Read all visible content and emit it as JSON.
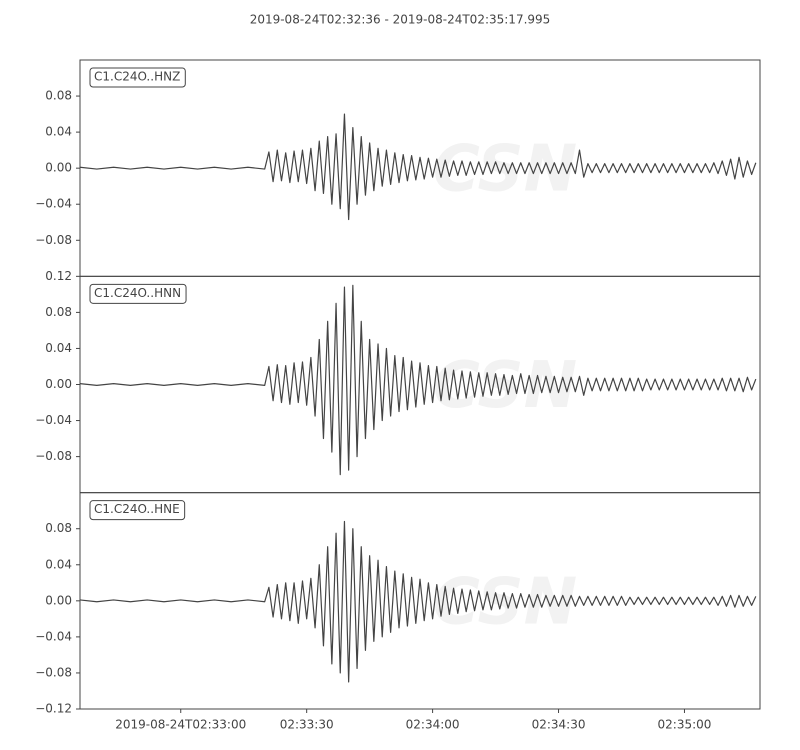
{
  "chart_data": {
    "type": "line",
    "title": "2019-08-24T02:32:36  -  2019-08-24T02:35:17.995",
    "watermark": "CSN",
    "xlim": [
      0,
      161.995
    ],
    "xticks": [
      {
        "value": 24,
        "label": "2019-08-24T02:33:00"
      },
      {
        "value": 54,
        "label": "02:33:30"
      },
      {
        "value": 84,
        "label": "02:34:00"
      },
      {
        "value": 114,
        "label": "02:34:30"
      },
      {
        "value": 144,
        "label": "02:35:00"
      }
    ],
    "x": [
      0,
      4,
      8,
      12,
      16,
      20,
      24,
      28,
      32,
      36,
      40,
      44,
      45,
      46,
      47,
      48,
      49,
      50,
      51,
      52,
      53,
      54,
      55,
      56,
      57,
      58,
      59,
      60,
      61,
      62,
      63,
      64,
      65,
      66,
      67,
      68,
      69,
      70,
      71,
      72,
      73,
      74,
      75,
      76,
      77,
      78,
      79,
      80,
      81,
      82,
      83,
      84,
      85,
      86,
      87,
      88,
      89,
      90,
      91,
      92,
      93,
      94,
      95,
      96,
      97,
      98,
      99,
      100,
      101,
      102,
      103,
      104,
      105,
      106,
      107,
      108,
      109,
      110,
      111,
      112,
      113,
      114,
      115,
      116,
      117,
      118,
      119,
      120,
      121,
      122,
      123,
      124,
      125,
      126,
      127,
      128,
      129,
      130,
      131,
      132,
      133,
      134,
      135,
      136,
      137,
      138,
      139,
      140,
      141,
      142,
      143,
      144,
      145,
      146,
      147,
      148,
      149,
      150,
      151,
      152,
      153,
      154,
      155,
      156,
      157,
      158,
      159,
      160,
      161
    ],
    "series": [
      {
        "name": "C1.C24O..HNZ",
        "color": "#444444",
        "ylim": [
          -0.12,
          0.12
        ],
        "yticks": [
          {
            "value": -0.08,
            "label": "−0.08"
          },
          {
            "value": -0.04,
            "label": "−0.04"
          },
          {
            "value": 0,
            "label": "0.00"
          },
          {
            "value": 0.04,
            "label": "0.04"
          },
          {
            "value": 0.08,
            "label": "0.08"
          }
        ],
        "values": [
          0.001,
          -0.001,
          0.001,
          -0.001,
          0.001,
          -0.001,
          0.001,
          -0.001,
          0.001,
          -0.001,
          0.001,
          -0.001,
          0.018,
          -0.015,
          0.02,
          -0.014,
          0.017,
          -0.016,
          0.019,
          -0.015,
          0.02,
          -0.017,
          0.022,
          -0.025,
          0.03,
          -0.028,
          0.035,
          -0.04,
          0.038,
          -0.045,
          0.06,
          -0.057,
          0.045,
          -0.04,
          0.035,
          -0.03,
          0.028,
          -0.025,
          0.022,
          -0.02,
          0.02,
          -0.018,
          0.017,
          -0.016,
          0.015,
          -0.014,
          0.014,
          -0.013,
          0.012,
          -0.012,
          0.011,
          -0.01,
          0.01,
          -0.01,
          0.009,
          -0.009,
          0.008,
          -0.008,
          0.008,
          -0.008,
          0.007,
          -0.007,
          0.007,
          -0.007,
          0.007,
          -0.006,
          0.007,
          -0.006,
          0.006,
          -0.006,
          0.006,
          -0.006,
          0.006,
          -0.006,
          0.006,
          -0.006,
          0.006,
          -0.006,
          0.006,
          -0.006,
          0.006,
          -0.006,
          0.006,
          -0.006,
          0.006,
          -0.006,
          0.02,
          -0.01,
          0.005,
          -0.005,
          0.005,
          -0.005,
          0.005,
          -0.005,
          0.005,
          -0.005,
          0.005,
          -0.005,
          0.005,
          -0.005,
          0.005,
          -0.005,
          0.005,
          -0.005,
          0.005,
          -0.005,
          0.005,
          -0.005,
          0.005,
          -0.005,
          0.005,
          -0.005,
          0.005,
          -0.005,
          0.005,
          -0.005,
          0.005,
          -0.005,
          0.006,
          -0.006,
          0.008,
          -0.008,
          0.01,
          -0.012,
          0.012,
          -0.01,
          0.008,
          -0.007,
          0.006
        ]
      },
      {
        "name": "C1.C24O..HNN",
        "color": "#444444",
        "ylim": [
          -0.12,
          0.12
        ],
        "yticks": [
          {
            "value": -0.08,
            "label": "−0.08"
          },
          {
            "value": -0.04,
            "label": "−0.04"
          },
          {
            "value": 0,
            "label": "0.00"
          },
          {
            "value": 0.04,
            "label": "0.04"
          },
          {
            "value": 0.08,
            "label": "0.08"
          },
          {
            "value": 0.12,
            "label": "0.12"
          }
        ],
        "values": [
          0.001,
          -0.001,
          0.001,
          -0.001,
          0.001,
          -0.001,
          0.001,
          -0.001,
          0.001,
          -0.001,
          0.001,
          -0.001,
          0.02,
          -0.018,
          0.022,
          -0.02,
          0.021,
          -0.022,
          0.024,
          -0.02,
          0.025,
          -0.023,
          0.03,
          -0.035,
          0.05,
          -0.06,
          0.07,
          -0.075,
          0.09,
          -0.1,
          0.108,
          -0.095,
          0.11,
          -0.08,
          0.07,
          -0.06,
          0.05,
          -0.05,
          0.045,
          -0.04,
          0.04,
          -0.035,
          0.032,
          -0.03,
          0.03,
          -0.028,
          0.026,
          -0.025,
          0.024,
          -0.022,
          0.021,
          -0.02,
          0.02,
          -0.018,
          0.018,
          -0.017,
          0.016,
          -0.016,
          0.015,
          -0.015,
          0.014,
          -0.014,
          0.013,
          -0.013,
          0.013,
          -0.012,
          0.012,
          -0.012,
          0.011,
          -0.011,
          0.01,
          -0.01,
          0.012,
          -0.01,
          0.01,
          -0.01,
          0.01,
          -0.009,
          0.009,
          -0.009,
          0.009,
          -0.009,
          0.008,
          -0.008,
          0.008,
          -0.008,
          0.009,
          -0.012,
          0.007,
          -0.007,
          0.007,
          -0.007,
          0.007,
          -0.007,
          0.007,
          -0.007,
          0.007,
          -0.007,
          0.007,
          -0.007,
          0.007,
          -0.007,
          0.006,
          -0.006,
          0.006,
          -0.006,
          0.006,
          -0.006,
          0.006,
          -0.006,
          0.006,
          -0.006,
          0.006,
          -0.006,
          0.006,
          -0.006,
          0.006,
          -0.006,
          0.006,
          -0.006,
          0.007,
          -0.007,
          0.007,
          -0.007,
          0.007,
          -0.008,
          0.008,
          -0.006,
          0.006
        ]
      },
      {
        "name": "C1.C24O..HNE",
        "color": "#444444",
        "ylim": [
          -0.12,
          0.12
        ],
        "yticks": [
          {
            "value": -0.12,
            "label": "−0.12"
          },
          {
            "value": -0.08,
            "label": "−0.08"
          },
          {
            "value": -0.04,
            "label": "−0.04"
          },
          {
            "value": 0,
            "label": "0.00"
          },
          {
            "value": 0.04,
            "label": "0.04"
          },
          {
            "value": 0.08,
            "label": "0.08"
          }
        ],
        "values": [
          0.001,
          -0.001,
          0.001,
          -0.001,
          0.001,
          -0.001,
          0.001,
          -0.001,
          0.001,
          -0.001,
          0.001,
          -0.001,
          0.015,
          -0.018,
          0.018,
          -0.02,
          0.02,
          -0.022,
          0.02,
          -0.025,
          0.022,
          -0.02,
          0.025,
          -0.03,
          0.04,
          -0.05,
          0.06,
          -0.07,
          0.075,
          -0.08,
          0.088,
          -0.09,
          0.08,
          -0.075,
          0.06,
          -0.055,
          0.05,
          -0.045,
          0.045,
          -0.04,
          0.038,
          -0.035,
          0.033,
          -0.03,
          0.03,
          -0.028,
          0.026,
          -0.025,
          0.024,
          -0.022,
          0.02,
          -0.02,
          0.018,
          -0.017,
          0.016,
          -0.015,
          0.014,
          -0.014,
          0.013,
          -0.012,
          0.012,
          -0.011,
          0.011,
          -0.01,
          0.01,
          -0.01,
          0.009,
          -0.009,
          0.009,
          -0.008,
          0.008,
          -0.008,
          0.008,
          -0.007,
          0.007,
          -0.007,
          0.007,
          -0.007,
          0.006,
          -0.006,
          0.006,
          -0.006,
          0.006,
          -0.006,
          0.006,
          -0.006,
          0.005,
          -0.005,
          0.005,
          -0.005,
          0.005,
          -0.005,
          0.005,
          -0.005,
          0.005,
          -0.005,
          0.005,
          -0.005,
          0.004,
          -0.004,
          0.004,
          -0.004,
          0.004,
          -0.004,
          0.004,
          -0.004,
          0.004,
          -0.004,
          0.004,
          -0.004,
          0.004,
          -0.004,
          0.004,
          -0.004,
          0.004,
          -0.004,
          0.004,
          -0.004,
          0.004,
          -0.005,
          0.005,
          -0.006,
          0.006,
          -0.007,
          0.006,
          -0.006,
          0.005,
          -0.005,
          0.005
        ]
      }
    ]
  }
}
